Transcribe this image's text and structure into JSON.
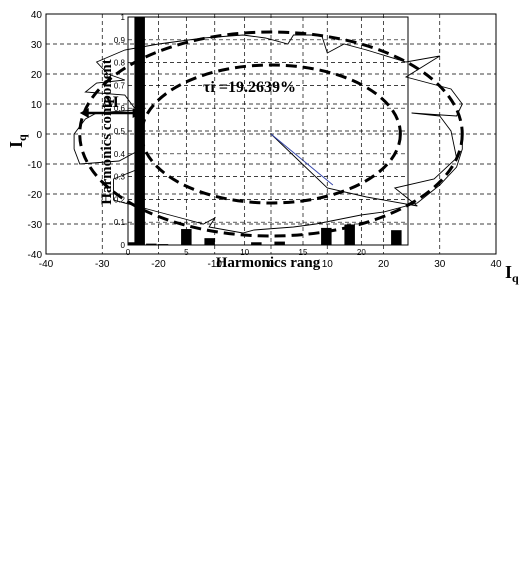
{
  "chart_data": [
    {
      "type": "line",
      "title": "",
      "xlabel": "",
      "ylabel_main": "I",
      "ylabel_sub": "q",
      "xlabel_right_main": "I",
      "xlabel_right_sub": "q",
      "xlim": [
        -40,
        40
      ],
      "ylim": [
        -40,
        40
      ],
      "xticks": [
        -40,
        -30,
        -20,
        -10,
        0,
        10,
        20,
        30,
        40
      ],
      "yticks": [
        40,
        30,
        20,
        10,
        0,
        -10,
        -20,
        -30,
        -40
      ],
      "grid": true,
      "annotation": "ΔI",
      "outer_circle": {
        "cx": 0,
        "cy": 0,
        "rx": 34,
        "ry": 34
      },
      "inner_circle": {
        "cx": 0,
        "cy": 0,
        "rx": 23,
        "ry": 23
      },
      "trajectory": [
        [
          0,
          0
        ],
        [
          10,
          -18
        ],
        [
          17,
          -21
        ],
        [
          26,
          -24
        ],
        [
          22,
          -18
        ],
        [
          29,
          -15
        ],
        [
          33,
          -8
        ],
        [
          32,
          1
        ],
        [
          30,
          6
        ],
        [
          25,
          7
        ],
        [
          33,
          6
        ],
        [
          34,
          10
        ],
        [
          32,
          15
        ],
        [
          24,
          19
        ],
        [
          30,
          26
        ],
        [
          24,
          24
        ],
        [
          17,
          28
        ],
        [
          13,
          30
        ],
        [
          10,
          27
        ],
        [
          9,
          33
        ],
        [
          4,
          33
        ],
        [
          3,
          30
        ],
        [
          -1,
          32
        ],
        [
          -5,
          33
        ],
        [
          -12,
          32
        ],
        [
          -20,
          30
        ],
        [
          -26,
          28
        ],
        [
          -31,
          24
        ],
        [
          -29,
          20
        ],
        [
          -26,
          18
        ],
        [
          -31,
          17
        ],
        [
          -33,
          14
        ],
        [
          -26,
          13
        ],
        [
          -24,
          8
        ],
        [
          -31,
          7
        ],
        [
          -33,
          5
        ],
        [
          -35,
          0
        ],
        [
          -35,
          -5
        ],
        [
          -34,
          -10
        ],
        [
          -27,
          -9
        ],
        [
          -24,
          -6
        ],
        [
          -24,
          -12
        ],
        [
          -28,
          -15
        ],
        [
          -28,
          -22
        ],
        [
          -22,
          -25
        ],
        [
          -16,
          -28
        ],
        [
          -12,
          -30
        ],
        [
          -10,
          -28
        ],
        [
          -11,
          -31
        ],
        [
          -5,
          -33
        ],
        [
          -3,
          -32
        ],
        [
          4,
          -31
        ],
        [
          8,
          -30
        ],
        [
          16,
          -27
        ],
        [
          20,
          -26
        ],
        [
          26,
          -23
        ],
        [
          30,
          -17
        ],
        [
          33,
          -11
        ],
        [
          34,
          -5
        ],
        [
          34,
          2
        ]
      ],
      "inner_line": [
        [
          0,
          0
        ],
        [
          11,
          -17
        ]
      ]
    },
    {
      "type": "bar",
      "title": "",
      "xlabel": "Harmonics rang",
      "ylabel": "Harmonics component",
      "xlim": [
        0,
        24
      ],
      "ylim": [
        0,
        1
      ],
      "xticks": [
        0,
        5,
        10,
        15,
        20
      ],
      "yticks": [
        0,
        0.1,
        0.2,
        0.3,
        0.4,
        0.5,
        0.6,
        0.7,
        0.8,
        0.9,
        1
      ],
      "grid": true,
      "annotation": "τi =19.2639%",
      "categories": [
        0,
        1,
        2,
        3,
        4,
        5,
        6,
        7,
        8,
        9,
        10,
        11,
        12,
        13,
        14,
        15,
        16,
        17,
        18,
        19,
        20,
        21,
        22,
        23
      ],
      "values": [
        0.012,
        1.0,
        0.006,
        0.004,
        0.002,
        0.07,
        0.002,
        0.03,
        0.002,
        0.002,
        0.002,
        0.012,
        0.002,
        0.015,
        0.002,
        0.002,
        0.002,
        0.075,
        0.002,
        0.09,
        0.002,
        0.002,
        0.002,
        0.065
      ]
    }
  ]
}
